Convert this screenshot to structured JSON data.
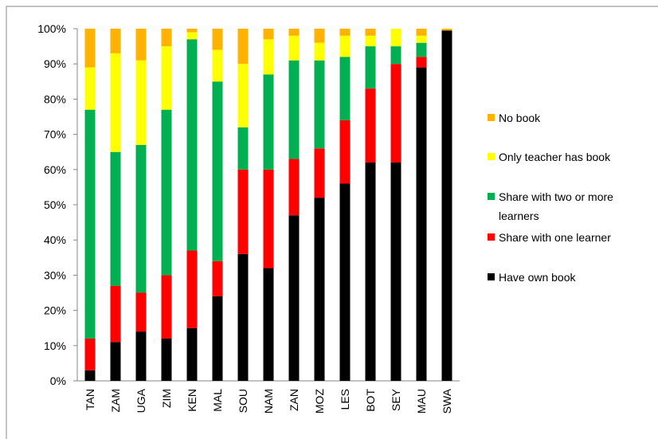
{
  "chart_data": {
    "type": "stacked_bar",
    "categories": [
      "TAN",
      "ZAM",
      "UGA",
      "ZIM",
      "KEN",
      "MAL",
      "SOU",
      "NAM",
      "ZAN",
      "MOZ",
      "LES",
      "BOT",
      "SEY",
      "MAU",
      "SWA"
    ],
    "series": [
      {
        "name": "Have own book",
        "color": "#000000",
        "values": [
          3,
          11,
          14,
          12,
          15,
          24,
          36,
          32,
          47,
          52,
          56,
          62,
          62,
          89,
          99.5
        ]
      },
      {
        "name": "Share with one learner",
        "color": "#ff0000",
        "values": [
          9,
          16,
          11,
          18,
          22,
          10,
          24,
          28,
          16,
          14,
          18,
          21,
          28,
          3,
          0
        ]
      },
      {
        "name": "Share with two or more learners",
        "color": "#00b050",
        "values": [
          65,
          38,
          42,
          47,
          60,
          51,
          12,
          27,
          28,
          25,
          18,
          12,
          5,
          4,
          0
        ]
      },
      {
        "name": "Only teacher has book",
        "color": "#ffff00",
        "values": [
          12,
          28,
          24,
          18,
          2,
          9,
          18,
          10,
          7,
          5,
          6,
          3,
          5,
          2,
          0
        ]
      },
      {
        "name": "No book",
        "color": "#ffb300",
        "values": [
          11,
          7,
          9,
          5,
          1,
          6,
          10,
          3,
          2,
          4,
          2,
          2,
          0,
          2,
          0.5
        ]
      }
    ],
    "ylim": [
      0,
      100
    ],
    "yticks": [
      {
        "value": 0,
        "label": "0%"
      },
      {
        "value": 10,
        "label": "10%"
      },
      {
        "value": 20,
        "label": "20%"
      },
      {
        "value": 30,
        "label": "30%"
      },
      {
        "value": 40,
        "label": "40%"
      },
      {
        "value": 50,
        "label": "50%"
      },
      {
        "value": 60,
        "label": "60%"
      },
      {
        "value": 70,
        "label": "70%"
      },
      {
        "value": 80,
        "label": "80%"
      },
      {
        "value": 90,
        "label": "90%"
      },
      {
        "value": 100,
        "label": "100%"
      }
    ],
    "grid": false
  }
}
